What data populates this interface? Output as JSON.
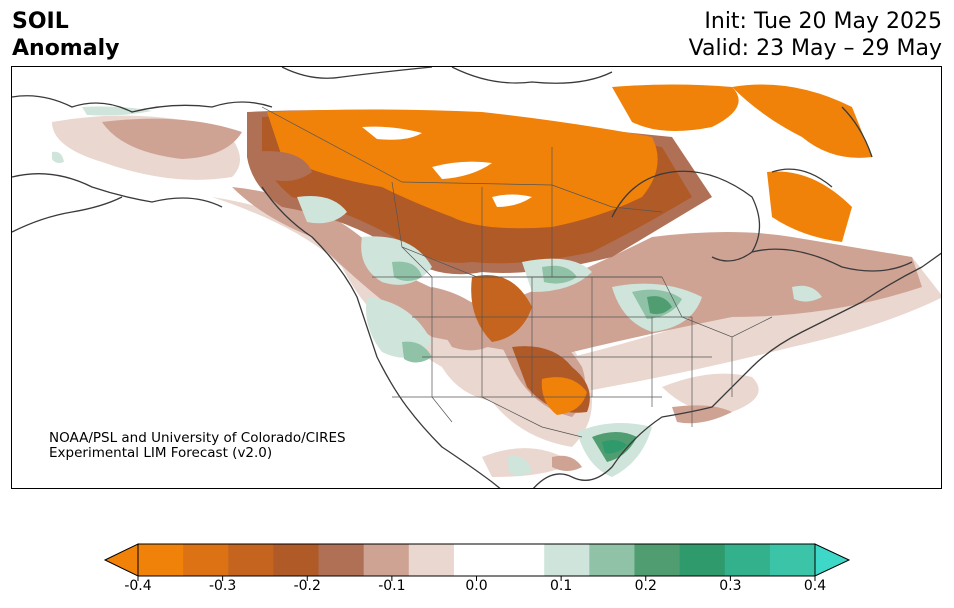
{
  "header": {
    "variable": "SOIL",
    "subtitle": "Anomaly",
    "init": "Init: Tue 20 May 2025",
    "valid": "Valid: 23 May – 29 May"
  },
  "credit": {
    "line1": "NOAA/PSL and University of Colorado/CIRES",
    "line2": "Experimental LIM Forecast (v2.0)"
  },
  "colorbar": {
    "ticks": [
      "-0.4",
      "-0.3",
      "-0.2",
      "-0.1",
      "0.0",
      "0.1",
      "0.2",
      "0.3",
      "0.4"
    ],
    "colors": [
      "#f0820a",
      "#dc7214",
      "#c4641e",
      "#b05a28",
      "#b07056",
      "#cea394",
      "#ead7cf",
      "#ffffff",
      "#ffffff",
      "#cfe4da",
      "#8fc2a6",
      "#4f9d70",
      "#2f9a6c",
      "#33b08c",
      "#3cc4a8"
    ],
    "extend_low": "#f0820a",
    "extend_high": "#3ed8c8"
  }
}
